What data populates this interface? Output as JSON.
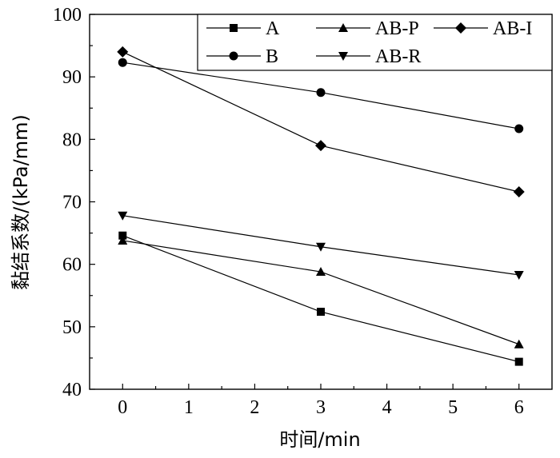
{
  "chart_data": {
    "type": "line",
    "xlabel": "时间/min",
    "ylabel": "黏结系数/(kPa/mm)",
    "xlim": [
      -0.5,
      6.5
    ],
    "ylim": [
      40,
      100
    ],
    "xticks": [
      0,
      1,
      2,
      3,
      4,
      5,
      6
    ],
    "yticks": [
      40,
      50,
      60,
      70,
      80,
      90,
      100
    ],
    "grid": false,
    "legend": "top-right",
    "series": [
      {
        "name": "A",
        "marker": "square",
        "x": [
          0,
          3,
          6
        ],
        "y": [
          64.6,
          52.4,
          44.4
        ]
      },
      {
        "name": "AB-P",
        "marker": "triangle-up",
        "x": [
          0,
          3,
          6
        ],
        "y": [
          63.8,
          58.8,
          47.2
        ]
      },
      {
        "name": "AB-I",
        "marker": "diamond",
        "x": [
          0,
          3,
          6
        ],
        "y": [
          94.0,
          79.0,
          71.6
        ]
      },
      {
        "name": "B",
        "marker": "circle",
        "x": [
          0,
          3,
          6
        ],
        "y": [
          92.3,
          87.5,
          81.7
        ]
      },
      {
        "name": "AB-R",
        "marker": "triangle-down",
        "x": [
          0,
          3,
          6
        ],
        "y": [
          67.8,
          62.8,
          58.3
        ]
      }
    ]
  }
}
